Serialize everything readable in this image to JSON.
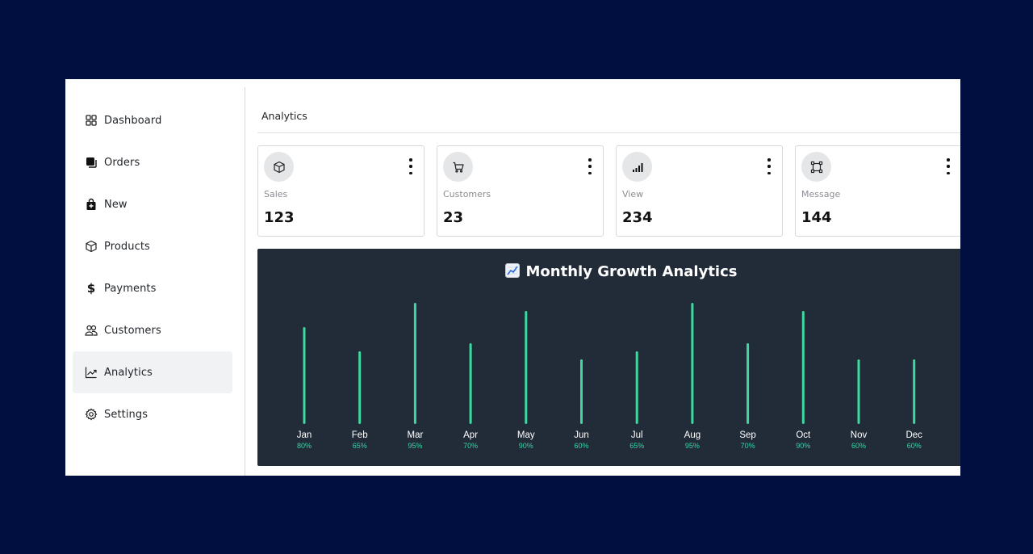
{
  "sidebar": {
    "items": [
      {
        "label": "Dashboard",
        "icon": "dashboard-grid-icon",
        "active": false
      },
      {
        "label": "Orders",
        "icon": "orders-copy-icon",
        "active": false
      },
      {
        "label": "New",
        "icon": "shopping-bag-plus-icon",
        "active": false
      },
      {
        "label": "Products",
        "icon": "box-icon",
        "active": false
      },
      {
        "label": "Payments",
        "icon": "dollar-icon",
        "active": false
      },
      {
        "label": "Customers",
        "icon": "users-icon",
        "active": false
      },
      {
        "label": "Analytics",
        "icon": "trend-chart-icon",
        "active": true
      },
      {
        "label": "Settings",
        "icon": "gear-icon",
        "active": false
      }
    ]
  },
  "header": {
    "title": "Analytics"
  },
  "cards": [
    {
      "label": "Sales",
      "value": "123",
      "icon": "box-icon"
    },
    {
      "label": "Customers",
      "value": "23",
      "icon": "cart-icon"
    },
    {
      "label": "View",
      "value": "234",
      "icon": "signal-bars-icon"
    },
    {
      "label": "Message",
      "value": "144",
      "icon": "square-nodes-icon"
    }
  ],
  "chart_data": {
    "type": "bar",
    "title": "Monthly Growth Analytics",
    "title_emoji": "chart-increasing-icon",
    "categories": [
      "Jan",
      "Feb",
      "Mar",
      "Apr",
      "May",
      "Jun",
      "Jul",
      "Aug",
      "Sep",
      "Oct",
      "Nov",
      "Dec"
    ],
    "values": [
      80,
      65,
      95,
      70,
      90,
      60,
      65,
      95,
      70,
      90,
      60,
      60
    ],
    "value_labels": [
      "80%",
      "65%",
      "95%",
      "70%",
      "90%",
      "60%",
      "65%",
      "95%",
      "70%",
      "90%",
      "60%",
      "60%"
    ],
    "unit": "%",
    "ylim": [
      0,
      100
    ],
    "bar_color": "#3dd9a0",
    "label_color": "#35d6a6",
    "background": "#222b38"
  },
  "colors": {
    "page_background": "#010f40",
    "active_nav": "#f1f2f4",
    "icon_circle": "#e5e6e8"
  }
}
